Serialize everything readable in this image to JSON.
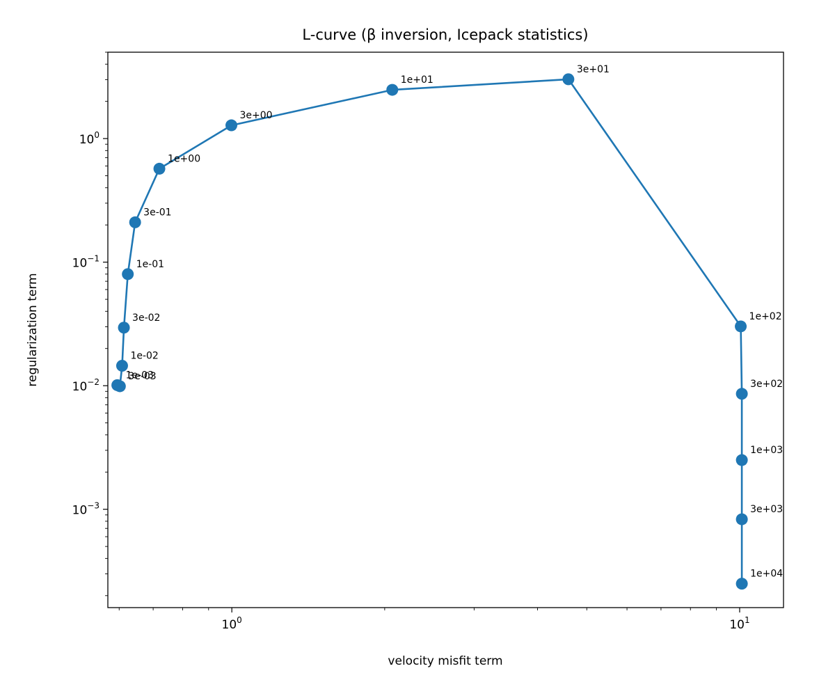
{
  "chart_data": {
    "type": "line",
    "title": "L-curve (β inversion, Icepack statistics)",
    "xlabel": "velocity misfit term",
    "ylabel": "regularization term",
    "xscale": "log",
    "yscale": "log",
    "xlim": [
      0.57,
      12.2
    ],
    "ylim": [
      0.00016,
      5.0
    ],
    "grid": false,
    "color": "#1f77b4",
    "x_ticks": [
      {
        "value": 1,
        "base": "10",
        "exp": "0"
      },
      {
        "value": 10,
        "base": "10",
        "exp": "1"
      }
    ],
    "y_ticks": [
      {
        "value": 0.001,
        "base": "10",
        "exp": "−3"
      },
      {
        "value": 0.01,
        "base": "10",
        "exp": "−2"
      },
      {
        "value": 0.1,
        "base": "10",
        "exp": "−1"
      },
      {
        "value": 1,
        "base": "10",
        "exp": "0"
      }
    ],
    "points": [
      {
        "label": "1e-03",
        "x": 0.595,
        "y": 0.0101
      },
      {
        "label": "3e-03",
        "x": 0.602,
        "y": 0.0099
      },
      {
        "label": "1e-02",
        "x": 0.608,
        "y": 0.0145
      },
      {
        "label": "3e-02",
        "x": 0.613,
        "y": 0.0295
      },
      {
        "label": "1e-01",
        "x": 0.624,
        "y": 0.08
      },
      {
        "label": "3e-01",
        "x": 0.645,
        "y": 0.21
      },
      {
        "label": "1e+00",
        "x": 0.72,
        "y": 0.57
      },
      {
        "label": "3e+00",
        "x": 0.998,
        "y": 1.28
      },
      {
        "label": "1e+01",
        "x": 2.07,
        "y": 2.48
      },
      {
        "label": "3e+01",
        "x": 4.6,
        "y": 3.02
      },
      {
        "label": "1e+02",
        "x": 10.05,
        "y": 0.0302
      },
      {
        "label": "3e+02",
        "x": 10.1,
        "y": 0.0086
      },
      {
        "label": "1e+03",
        "x": 10.1,
        "y": 0.0025
      },
      {
        "label": "3e+03",
        "x": 10.1,
        "y": 0.00083
      },
      {
        "label": "1e+04",
        "x": 10.1,
        "y": 0.00025
      }
    ]
  }
}
